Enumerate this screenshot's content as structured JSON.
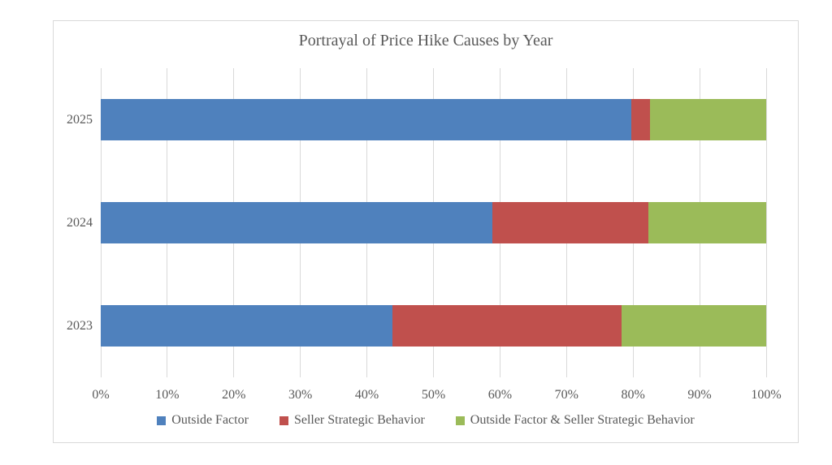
{
  "chart": {
    "title": "Portrayal of Price Hike Causes by Year"
  },
  "chart_data": {
    "type": "bar",
    "orientation": "horizontal",
    "stacked": true,
    "percent_stacked": true,
    "title": "Portrayal of Price Hike Causes by Year",
    "categories": [
      "2025",
      "2024",
      "2023"
    ],
    "series": [
      {
        "name": "Outside Factor",
        "color": "#4F81BD",
        "values": [
          79.7,
          58.9,
          43.8
        ]
      },
      {
        "name": "Seller Strategic Behavior",
        "color": "#C0504D",
        "values": [
          2.8,
          23.4,
          34.5
        ]
      },
      {
        "name": "Outside Factor & Seller Strategic Behavior",
        "color": "#9BBB59",
        "values": [
          17.5,
          17.7,
          21.7
        ]
      }
    ],
    "x_ticks": [
      "0%",
      "10%",
      "20%",
      "30%",
      "40%",
      "50%",
      "60%",
      "70%",
      "80%",
      "90%",
      "100%"
    ],
    "xlim": [
      0,
      100
    ],
    "xlabel": "",
    "ylabel": "",
    "grid": true,
    "legend_position": "bottom",
    "colors": {
      "grid": "#d9d9d9",
      "border": "#d9d9d9",
      "text": "#595959",
      "background": "#ffffff"
    }
  }
}
